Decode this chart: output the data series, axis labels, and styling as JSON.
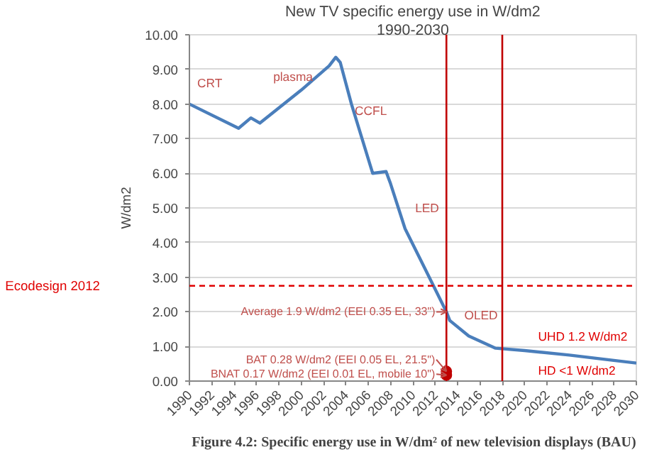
{
  "chart_data": {
    "type": "line",
    "title": "New TV specific energy use in W/dm2",
    "subtitle": "1990-2030",
    "ylabel": "W/dm2",
    "series": [
      {
        "color": "#4a7ebb",
        "x": [
          1990,
          1994.4,
          1995.5,
          1996.3,
          2000,
          2002.5,
          2003.1,
          2003.5,
          2004.5,
          2006.4,
          2007.6,
          2008,
          2009.3,
          2011,
          2013,
          2013.3,
          2015,
          2017.4,
          2020,
          2024,
          2030
        ],
        "values": [
          8.0,
          7.3,
          7.6,
          7.45,
          8.4,
          9.1,
          9.35,
          9.2,
          8.0,
          6.0,
          6.05,
          5.7,
          4.4,
          3.3,
          2.0,
          1.75,
          1.3,
          0.95,
          0.88,
          0.75,
          0.52
        ]
      },
      {
        "type": "scatter",
        "marker": "circle",
        "color": "#c00000",
        "x": [
          2013,
          2013
        ],
        "values": [
          0.28,
          0.17
        ]
      }
    ],
    "xlim": [
      1990,
      2030
    ],
    "xticks": [
      1990,
      1992,
      1994,
      1996,
      1998,
      2000,
      2002,
      2004,
      2006,
      2008,
      2010,
      2012,
      2014,
      2016,
      2018,
      2020,
      2022,
      2024,
      2026,
      2028,
      2030
    ],
    "ylim": [
      0,
      10
    ],
    "yticks": [
      {
        "value": 0,
        "label": "0.00"
      },
      {
        "value": 1,
        "label": "1.00"
      },
      {
        "value": 2,
        "label": "2.00"
      },
      {
        "value": 3,
        "label": "3.00"
      },
      {
        "value": 4,
        "label": "4.00"
      },
      {
        "value": 5,
        "label": "5.00"
      },
      {
        "value": 6,
        "label": "6.00"
      },
      {
        "value": 7,
        "label": "7.00"
      },
      {
        "value": 8,
        "label": "8.00"
      },
      {
        "value": 9,
        "label": "9.00"
      },
      {
        "value": 10,
        "label": "10.00"
      }
    ],
    "grid": "y",
    "line_style": "solid",
    "ref_lines": [
      {
        "axis": "y",
        "value": 2.75,
        "label": "Ecodesign 2012",
        "color": "#e00000",
        "line_style": "dashed"
      },
      {
        "axis": "x",
        "value": 2013,
        "color": "#c00000",
        "line_style": "solid"
      },
      {
        "axis": "x",
        "value": 2018,
        "color": "#c00000",
        "line_style": "solid"
      }
    ],
    "annotations": [
      "CRT",
      "plasma",
      "CCFL",
      "LED",
      "OLED",
      "UHD 1.2 W/dm2",
      "HD <1 W/dm2",
      "Average 1.9 W/dm2 (EEI 0.35 EL, 33\")",
      "BAT 0.28 W/dm2 (EEI 0.05 EL, 21.5\")",
      "BNAT 0.17 W/dm2 (EEI 0.01 EL, mobile 10\")",
      "Figure 4.2: Specific energy use in W/dm² of new television displays (BAU)"
    ]
  }
}
